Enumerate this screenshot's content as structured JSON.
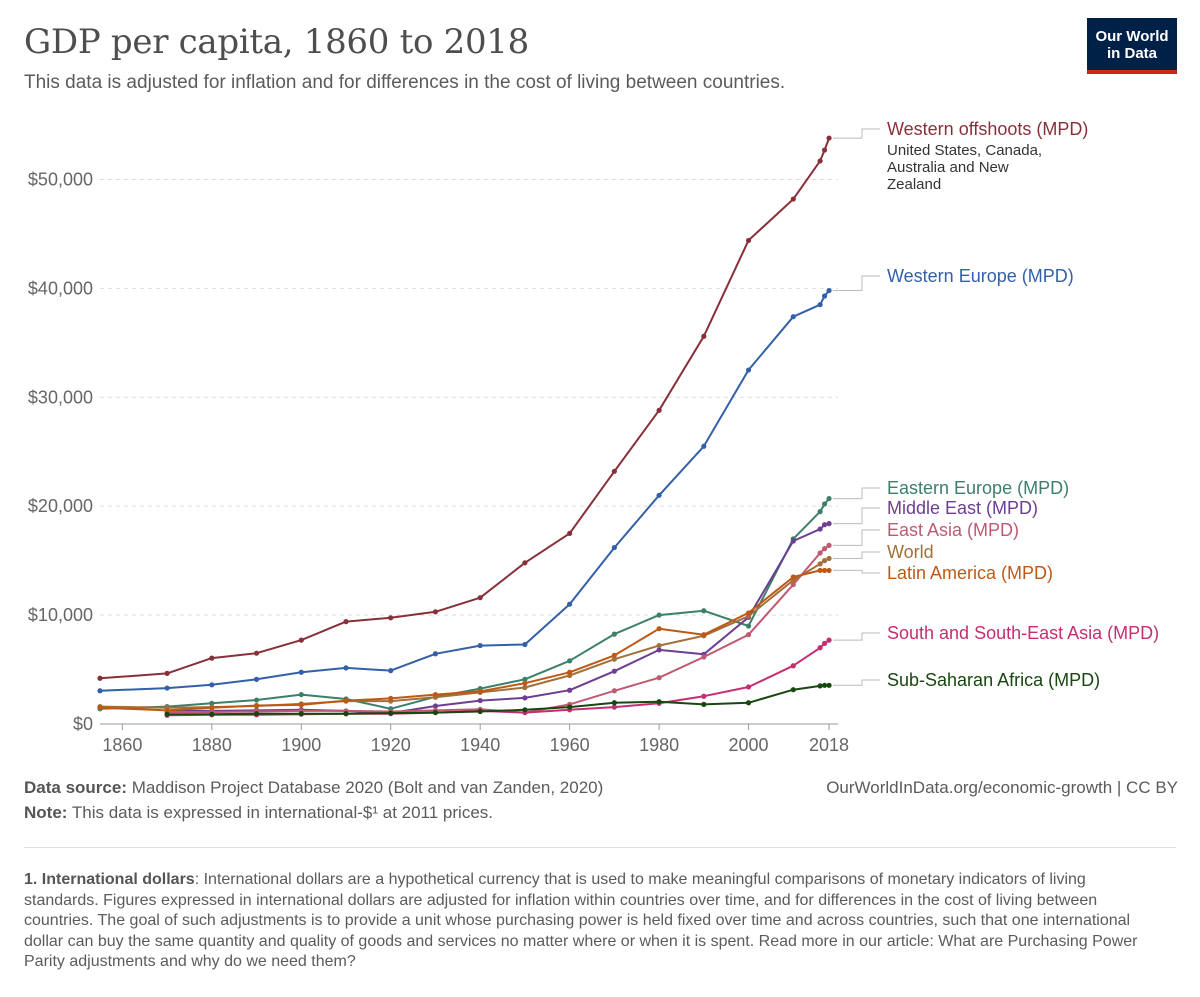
{
  "header": {
    "title": "GDP per capita, 1860 to 2018",
    "subtitle": "This data is adjusted for inflation and for differences in the cost of living between countries.",
    "logo_line1": "Our World",
    "logo_line2": "in Data"
  },
  "footer": {
    "source_label": "Data source:",
    "source_text": " Maddison Project Database 2020 (Bolt and van Zanden, 2020)",
    "note_label": "Note:",
    "note_text": " This data is expressed in international-$¹ at 2011 prices.",
    "url": "OurWorldInData.org/economic-growth  | CC BY",
    "footnote_label": "1. International dollars",
    "footnote_text": ": International dollars are a hypothetical currency that is used to make meaningful comparisons of monetary indicators of living standards. Figures expressed in international dollars are adjusted for inflation within countries over time, and for differences in the cost of living between countries. The goal of such adjustments is to provide a unit whose purchasing power is held fixed over time and across countries, such that one international dollar can buy the same quantity and quality of goods and services no matter where or when it is spent. Read more in our article: What are Purchasing Power Parity adjustments and why do we need them?"
  },
  "chart_data": {
    "type": "line",
    "title": "GDP per capita, 1860 to 2018",
    "xlabel": "",
    "ylabel": "",
    "xlim": [
      1855,
      2020
    ],
    "ylim": [
      0,
      55000
    ],
    "x_ticks": [
      1860,
      1880,
      1900,
      1920,
      1940,
      1960,
      1980,
      2000,
      2018
    ],
    "y_ticks": [
      0,
      10000,
      20000,
      30000,
      40000,
      50000
    ],
    "y_tick_labels": [
      "$0",
      "$10,000",
      "$20,000",
      "$30,000",
      "$40,000",
      "$50,000"
    ],
    "grid": "horizontal-dashed",
    "legend": "right-end-labels",
    "series": [
      {
        "name": "Western offshoots (MPD)",
        "sublabel": "United States, Canada, Australia and New Zealand",
        "color": "#883039",
        "points": [
          [
            1855,
            4200
          ],
          [
            1870,
            4650
          ],
          [
            1880,
            6050
          ],
          [
            1890,
            6500
          ],
          [
            1900,
            7700
          ],
          [
            1910,
            9400
          ],
          [
            1920,
            9750
          ],
          [
            1930,
            10300
          ],
          [
            1940,
            11600
          ],
          [
            1950,
            14800
          ],
          [
            1960,
            17500
          ],
          [
            1970,
            23200
          ],
          [
            1980,
            28800
          ],
          [
            1990,
            35600
          ],
          [
            2000,
            44400
          ],
          [
            2010,
            48200
          ],
          [
            2016,
            51700
          ],
          [
            2017,
            52700
          ],
          [
            2018,
            53800
          ]
        ]
      },
      {
        "name": "Western Europe (MPD)",
        "color": "#3360a9",
        "points": [
          [
            1855,
            3050
          ],
          [
            1870,
            3300
          ],
          [
            1880,
            3600
          ],
          [
            1890,
            4100
          ],
          [
            1900,
            4750
          ],
          [
            1910,
            5150
          ],
          [
            1920,
            4900
          ],
          [
            1930,
            6450
          ],
          [
            1940,
            7200
          ],
          [
            1950,
            7300
          ],
          [
            1960,
            11000
          ],
          [
            1970,
            16200
          ],
          [
            1980,
            21000
          ],
          [
            1990,
            25500
          ],
          [
            2000,
            32500
          ],
          [
            2010,
            37400
          ],
          [
            2016,
            38500
          ],
          [
            2017,
            39300
          ],
          [
            2018,
            39800
          ]
        ]
      },
      {
        "name": "Eastern Europe (MPD)",
        "color": "#3c8067",
        "points": [
          [
            1855,
            1400
          ],
          [
            1870,
            1600
          ],
          [
            1880,
            1900
          ],
          [
            1890,
            2200
          ],
          [
            1900,
            2700
          ],
          [
            1910,
            2300
          ],
          [
            1920,
            1400
          ],
          [
            1930,
            2500
          ],
          [
            1940,
            3250
          ],
          [
            1950,
            4100
          ],
          [
            1960,
            5800
          ],
          [
            1970,
            8250
          ],
          [
            1980,
            10000
          ],
          [
            1990,
            10400
          ],
          [
            2000,
            9000
          ],
          [
            2010,
            17000
          ],
          [
            2016,
            19500
          ],
          [
            2017,
            20200
          ],
          [
            2018,
            20700
          ]
        ]
      },
      {
        "name": "Middle East (MPD)",
        "color": "#6d3e91",
        "points": [
          [
            1870,
            1200
          ],
          [
            1880,
            1200
          ],
          [
            1890,
            1250
          ],
          [
            1900,
            1300
          ],
          [
            1910,
            1200
          ],
          [
            1920,
            1000
          ],
          [
            1930,
            1650
          ],
          [
            1940,
            2150
          ],
          [
            1950,
            2400
          ],
          [
            1960,
            3100
          ],
          [
            1970,
            4850
          ],
          [
            1980,
            6800
          ],
          [
            1990,
            6400
          ],
          [
            2000,
            9800
          ],
          [
            2010,
            16800
          ],
          [
            2016,
            17900
          ],
          [
            2017,
            18300
          ],
          [
            2018,
            18400
          ]
        ]
      },
      {
        "name": "East Asia (MPD)",
        "color": "#c05a73",
        "points": [
          [
            1870,
            1100
          ],
          [
            1880,
            1100
          ],
          [
            1890,
            1150
          ],
          [
            1900,
            1200
          ],
          [
            1910,
            1200
          ],
          [
            1920,
            1150
          ],
          [
            1930,
            1250
          ],
          [
            1940,
            1350
          ],
          [
            1950,
            1050
          ],
          [
            1960,
            1800
          ],
          [
            1970,
            3050
          ],
          [
            1980,
            4250
          ],
          [
            1990,
            6150
          ],
          [
            2000,
            8200
          ],
          [
            2010,
            12800
          ],
          [
            2016,
            15700
          ],
          [
            2017,
            16100
          ],
          [
            2018,
            16400
          ]
        ]
      },
      {
        "name": "World",
        "color": "#a2703b",
        "points": [
          [
            1855,
            1600
          ],
          [
            1870,
            1500
          ],
          [
            1880,
            1550
          ],
          [
            1890,
            1650
          ],
          [
            1900,
            1850
          ],
          [
            1910,
            2100
          ],
          [
            1920,
            2100
          ],
          [
            1930,
            2450
          ],
          [
            1940,
            2900
          ],
          [
            1950,
            3350
          ],
          [
            1960,
            4450
          ],
          [
            1970,
            5950
          ],
          [
            1980,
            7200
          ],
          [
            1990,
            8100
          ],
          [
            2000,
            9900
          ],
          [
            2010,
            13200
          ],
          [
            2016,
            14700
          ],
          [
            2017,
            15000
          ],
          [
            2018,
            15200
          ]
        ]
      },
      {
        "name": "Latin America (MPD)",
        "color": "#be5915",
        "points": [
          [
            1855,
            1500
          ],
          [
            1870,
            1250
          ],
          [
            1880,
            1500
          ],
          [
            1890,
            1700
          ],
          [
            1900,
            1750
          ],
          [
            1910,
            2150
          ],
          [
            1920,
            2350
          ],
          [
            1930,
            2700
          ],
          [
            1940,
            3000
          ],
          [
            1950,
            3750
          ],
          [
            1960,
            4750
          ],
          [
            1970,
            6300
          ],
          [
            1980,
            8750
          ],
          [
            1990,
            8200
          ],
          [
            2000,
            10200
          ],
          [
            2010,
            13500
          ],
          [
            2016,
            14100
          ],
          [
            2017,
            14100
          ],
          [
            2018,
            14100
          ]
        ]
      },
      {
        "name": "South and South-East Asia (MPD)",
        "color": "#c52e71",
        "points": [
          [
            1870,
            800
          ],
          [
            1880,
            850
          ],
          [
            1890,
            850
          ],
          [
            1900,
            900
          ],
          [
            1910,
            950
          ],
          [
            1920,
            950
          ],
          [
            1930,
            1050
          ],
          [
            1940,
            1200
          ],
          [
            1950,
            1050
          ],
          [
            1960,
            1300
          ],
          [
            1970,
            1550
          ],
          [
            1980,
            1900
          ],
          [
            1990,
            2550
          ],
          [
            2000,
            3400
          ],
          [
            2010,
            5350
          ],
          [
            2016,
            7000
          ],
          [
            2017,
            7400
          ],
          [
            2018,
            7700
          ]
        ]
      },
      {
        "name": "Sub-Saharan Africa (MPD)",
        "color": "#18470f",
        "points": [
          [
            1870,
            900
          ],
          [
            1880,
            900
          ],
          [
            1890,
            950
          ],
          [
            1900,
            950
          ],
          [
            1910,
            950
          ],
          [
            1920,
            1000
          ],
          [
            1930,
            1050
          ],
          [
            1940,
            1150
          ],
          [
            1950,
            1300
          ],
          [
            1960,
            1550
          ],
          [
            1970,
            1950
          ],
          [
            1980,
            2050
          ],
          [
            1990,
            1800
          ],
          [
            2000,
            1950
          ],
          [
            2010,
            3150
          ],
          [
            2016,
            3500
          ],
          [
            2017,
            3550
          ],
          [
            2018,
            3550
          ]
        ]
      }
    ]
  }
}
